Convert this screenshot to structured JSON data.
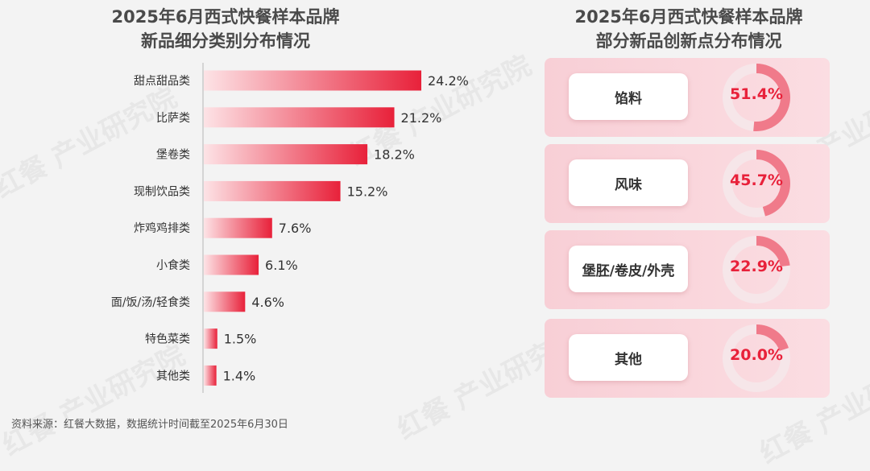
{
  "left_title": [
    "2025年6月西式快餐样本品牌",
    "新品细分类别分布情况"
  ],
  "right_title": [
    "2025年6月西式快餐样本品牌",
    "部分新品创新点分布情况"
  ],
  "source": "资料来源：红餐大数据，数据统计时间截至2025年6月30日",
  "watermark": "红餐 产业研究院",
  "colors": {
    "bar": "#e8213a",
    "bar_light": "#fbd3d8",
    "ring": "#f07a8a",
    "ring_track": "#f6e6e9",
    "pct_text": "#e8213a"
  },
  "chart_data": [
    {
      "type": "bar",
      "orientation": "horizontal",
      "categories": [
        "甜点甜品类",
        "比萨类",
        "堡卷类",
        "现制饮品类",
        "炸鸡鸡排类",
        "小食类",
        "面/饭/汤/轻食类",
        "特色菜类",
        "其他类"
      ],
      "values": [
        24.2,
        21.2,
        18.2,
        15.2,
        7.6,
        6.1,
        4.6,
        1.5,
        1.4
      ],
      "value_labels": [
        "24.2%",
        "21.2%",
        "18.2%",
        "15.2%",
        "7.6%",
        "6.1%",
        "4.6%",
        "1.5%",
        "1.4%"
      ],
      "xlim": [
        0,
        24.2
      ],
      "grid": false
    },
    {
      "type": "pie",
      "style": "donut-per-item",
      "categories": [
        "馅料",
        "风味",
        "堡胚/卷皮/外壳",
        "其他"
      ],
      "values": [
        51.4,
        45.7,
        22.9,
        20.0
      ],
      "value_labels": [
        "51.4%",
        "45.7%",
        "22.9%",
        "20.0%"
      ]
    }
  ]
}
